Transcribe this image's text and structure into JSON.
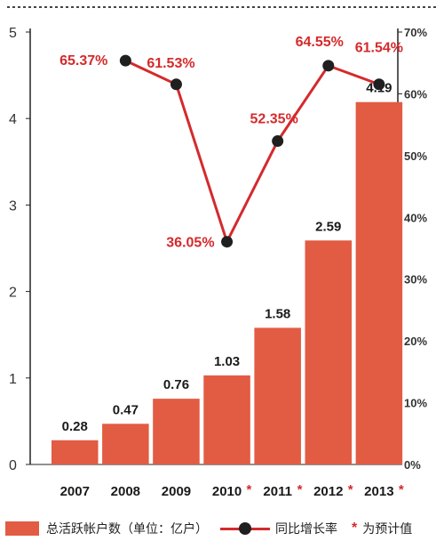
{
  "colors": {
    "bar": "#e25b43",
    "line": "#d42a2c",
    "marker": "#1f1f1f",
    "pct_label": "#d42a2c",
    "value_label": "#1a1a1a",
    "axis": "#222222"
  },
  "legend": {
    "bars_label": "总活跃帐户数（单位：亿户）",
    "line_label": "同比增长率",
    "star_symbol": "*",
    "star_label": "为预计值"
  },
  "chart_data": {
    "type": "bar",
    "categories": [
      "2007",
      "2008",
      "2009",
      "2010",
      "2011",
      "2012",
      "2013"
    ],
    "estimated": [
      false,
      false,
      false,
      true,
      true,
      true,
      true
    ],
    "estimate_marker": "*",
    "series": [
      {
        "name": "总活跃帐户数（单位：亿户）",
        "type": "bar",
        "axis": "left",
        "values": [
          0.28,
          0.47,
          0.76,
          1.03,
          1.58,
          2.59,
          4.19
        ],
        "labels": [
          "0.28",
          "0.47",
          "0.76",
          "1.03",
          "1.58",
          "2.59",
          "4.19"
        ]
      },
      {
        "name": "同比增长率",
        "type": "line",
        "axis": "right",
        "values": [
          null,
          65.37,
          61.53,
          36.05,
          52.35,
          64.55,
          61.54
        ],
        "labels": [
          null,
          "65.37%",
          "61.53%",
          "36.05%",
          "52.35%",
          "64.55%",
          "61.54%"
        ]
      }
    ],
    "y_left": {
      "min": 0,
      "max": 5,
      "ticks": [
        "0",
        "1",
        "2",
        "3",
        "4",
        "5"
      ]
    },
    "y_right": {
      "min": 0,
      "max": 70,
      "ticks": [
        "0%",
        "10%",
        "20%",
        "30%",
        "40%",
        "50%",
        "60%",
        "70%"
      ]
    },
    "grid": false,
    "legend_position": "bottom"
  }
}
